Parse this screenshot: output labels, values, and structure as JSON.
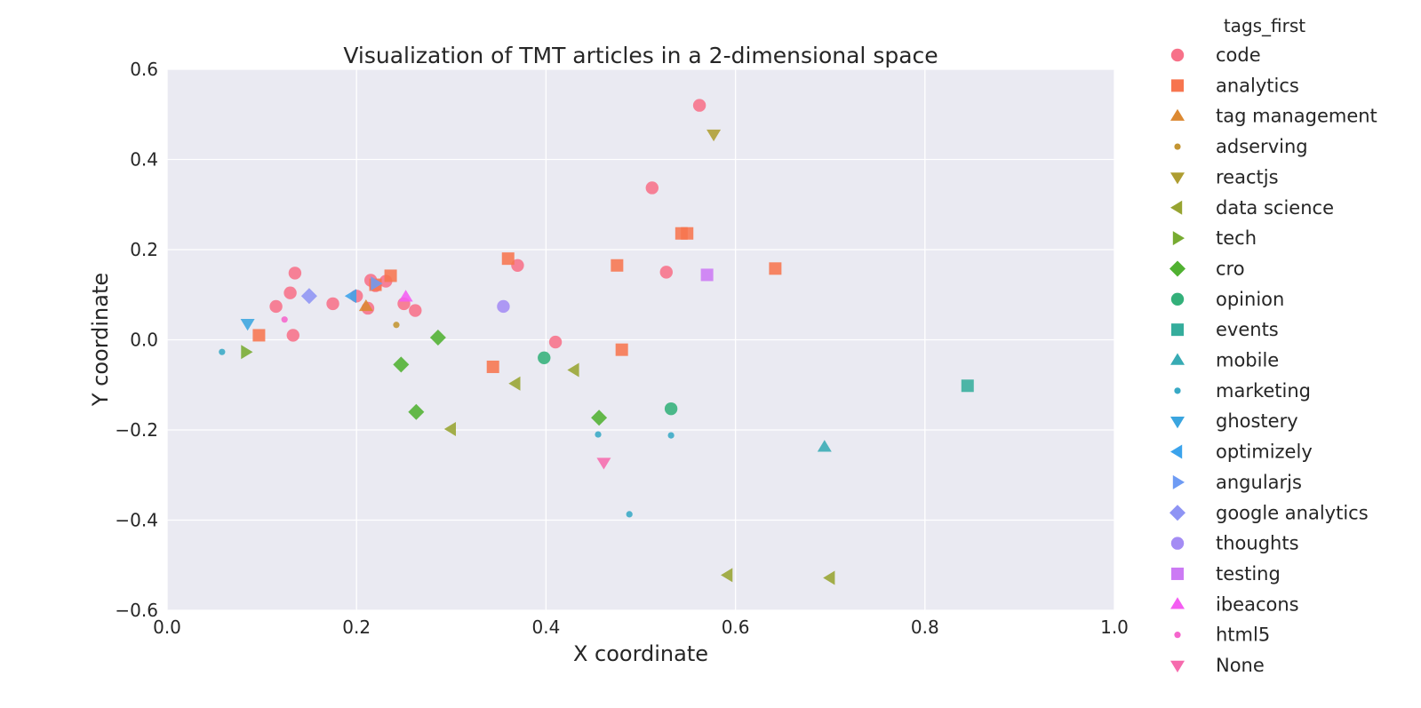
{
  "chart_data": {
    "type": "scatter",
    "title": "Visualization of TMT articles in a 2-dimensional space",
    "xlabel": "X coordinate",
    "ylabel": "Y coordinate",
    "xlim": [
      0.0,
      1.0
    ],
    "ylim": [
      -0.6,
      0.6
    ],
    "x_ticks": [
      0.0,
      0.2,
      0.4,
      0.6,
      0.8,
      1.0
    ],
    "x_tick_labels": [
      "0.0",
      "0.2",
      "0.4",
      "0.6",
      "0.8",
      "1.0"
    ],
    "y_ticks": [
      0.6,
      0.4,
      0.2,
      0.0,
      -0.2,
      -0.4,
      -0.6
    ],
    "y_tick_labels": [
      "0.6",
      "0.4",
      "0.2",
      "0.0",
      "−0.2",
      "−0.4",
      "−0.6"
    ],
    "grid": true,
    "legend_title": "tags_first",
    "legend_position": "outside-right",
    "series": [
      {
        "name": "code",
        "marker": "circle",
        "size": "large",
        "color": "#f77189",
        "points": [
          [
            0.562,
            0.52
          ],
          [
            0.512,
            0.337
          ],
          [
            0.527,
            0.15
          ],
          [
            0.37,
            0.165
          ],
          [
            0.135,
            0.148
          ],
          [
            0.13,
            0.104
          ],
          [
            0.115,
            0.074
          ],
          [
            0.175,
            0.08
          ],
          [
            0.2,
            0.097
          ],
          [
            0.215,
            0.132
          ],
          [
            0.231,
            0.13
          ],
          [
            0.22,
            0.12
          ],
          [
            0.212,
            0.07
          ],
          [
            0.25,
            0.08
          ],
          [
            0.262,
            0.065
          ],
          [
            0.133,
            0.01
          ],
          [
            0.41,
            -0.005
          ]
        ]
      },
      {
        "name": "analytics",
        "marker": "square",
        "size": "large",
        "color": "#f7754f",
        "points": [
          [
            0.543,
            0.236
          ],
          [
            0.549,
            0.236
          ],
          [
            0.36,
            0.18
          ],
          [
            0.475,
            0.165
          ],
          [
            0.642,
            0.158
          ],
          [
            0.236,
            0.142
          ],
          [
            0.22,
            0.122
          ],
          [
            0.097,
            0.01
          ],
          [
            0.48,
            -0.022
          ],
          [
            0.344,
            -0.06
          ]
        ]
      },
      {
        "name": "tag management",
        "marker": "triangle-up",
        "size": "large",
        "color": "#dc8932",
        "points": [
          [
            0.21,
            0.074
          ]
        ]
      },
      {
        "name": "adserving",
        "marker": "circle",
        "size": "small",
        "color": "#c39532",
        "points": [
          [
            0.242,
            0.033
          ]
        ]
      },
      {
        "name": "reactjs",
        "marker": "triangle-down",
        "size": "large",
        "color": "#ae9d31",
        "points": [
          [
            0.577,
            0.456
          ]
        ]
      },
      {
        "name": "data science",
        "marker": "triangle-left",
        "size": "large",
        "color": "#97a431",
        "points": [
          [
            0.43,
            -0.067
          ],
          [
            0.368,
            -0.097
          ],
          [
            0.3,
            -0.198
          ],
          [
            0.592,
            -0.522
          ],
          [
            0.7,
            -0.528
          ]
        ]
      },
      {
        "name": "tech",
        "marker": "triangle-right",
        "size": "large",
        "color": "#77ab31",
        "points": [
          [
            0.083,
            -0.027
          ]
        ]
      },
      {
        "name": "cro",
        "marker": "diamond",
        "size": "large",
        "color": "#50b131",
        "points": [
          [
            0.286,
            0.005
          ],
          [
            0.247,
            -0.055
          ],
          [
            0.263,
            -0.16
          ],
          [
            0.456,
            -0.173
          ]
        ]
      },
      {
        "name": "opinion",
        "marker": "circle",
        "size": "large",
        "color": "#33b07a",
        "points": [
          [
            0.398,
            -0.04
          ],
          [
            0.532,
            -0.153
          ]
        ]
      },
      {
        "name": "events",
        "marker": "square",
        "size": "large",
        "color": "#35ad9c",
        "points": [
          [
            0.845,
            -0.102
          ]
        ]
      },
      {
        "name": "mobile",
        "marker": "triangle-up",
        "size": "large",
        "color": "#37abb4",
        "points": [
          [
            0.694,
            -0.238
          ]
        ]
      },
      {
        "name": "marketing",
        "marker": "circle",
        "size": "small",
        "color": "#38a9c5",
        "points": [
          [
            0.058,
            -0.027
          ],
          [
            0.455,
            -0.21
          ],
          [
            0.532,
            -0.212
          ],
          [
            0.488,
            -0.387
          ]
        ]
      },
      {
        "name": "ghostery",
        "marker": "triangle-down",
        "size": "large",
        "color": "#3aa5df",
        "points": [
          [
            0.085,
            0.036
          ]
        ]
      },
      {
        "name": "optimizely",
        "marker": "triangle-left",
        "size": "large",
        "color": "#3ba3ec",
        "points": [
          [
            0.195,
            0.097
          ]
        ]
      },
      {
        "name": "angularjs",
        "marker": "triangle-right",
        "size": "large",
        "color": "#6e9bf4",
        "points": [
          [
            0.22,
            0.125
          ]
        ]
      },
      {
        "name": "google analytics",
        "marker": "diamond",
        "size": "large",
        "color": "#8e94f4",
        "points": [
          [
            0.15,
            0.097
          ]
        ]
      },
      {
        "name": "thoughts",
        "marker": "circle",
        "size": "large",
        "color": "#a48cf4",
        "points": [
          [
            0.355,
            0.074
          ]
        ]
      },
      {
        "name": "testing",
        "marker": "square",
        "size": "large",
        "color": "#cc7af4",
        "points": [
          [
            0.57,
            0.144
          ]
        ]
      },
      {
        "name": "ibeacons",
        "marker": "triangle-up",
        "size": "large",
        "color": "#f45cf2",
        "points": [
          [
            0.252,
            0.095
          ]
        ]
      },
      {
        "name": "html5",
        "marker": "circle",
        "size": "small",
        "color": "#f565cc",
        "points": [
          [
            0.124,
            0.045
          ]
        ]
      },
      {
        "name": "None",
        "marker": "triangle-down",
        "size": "large",
        "color": "#f66bad",
        "points": [
          [
            0.461,
            -0.272
          ]
        ]
      }
    ]
  }
}
